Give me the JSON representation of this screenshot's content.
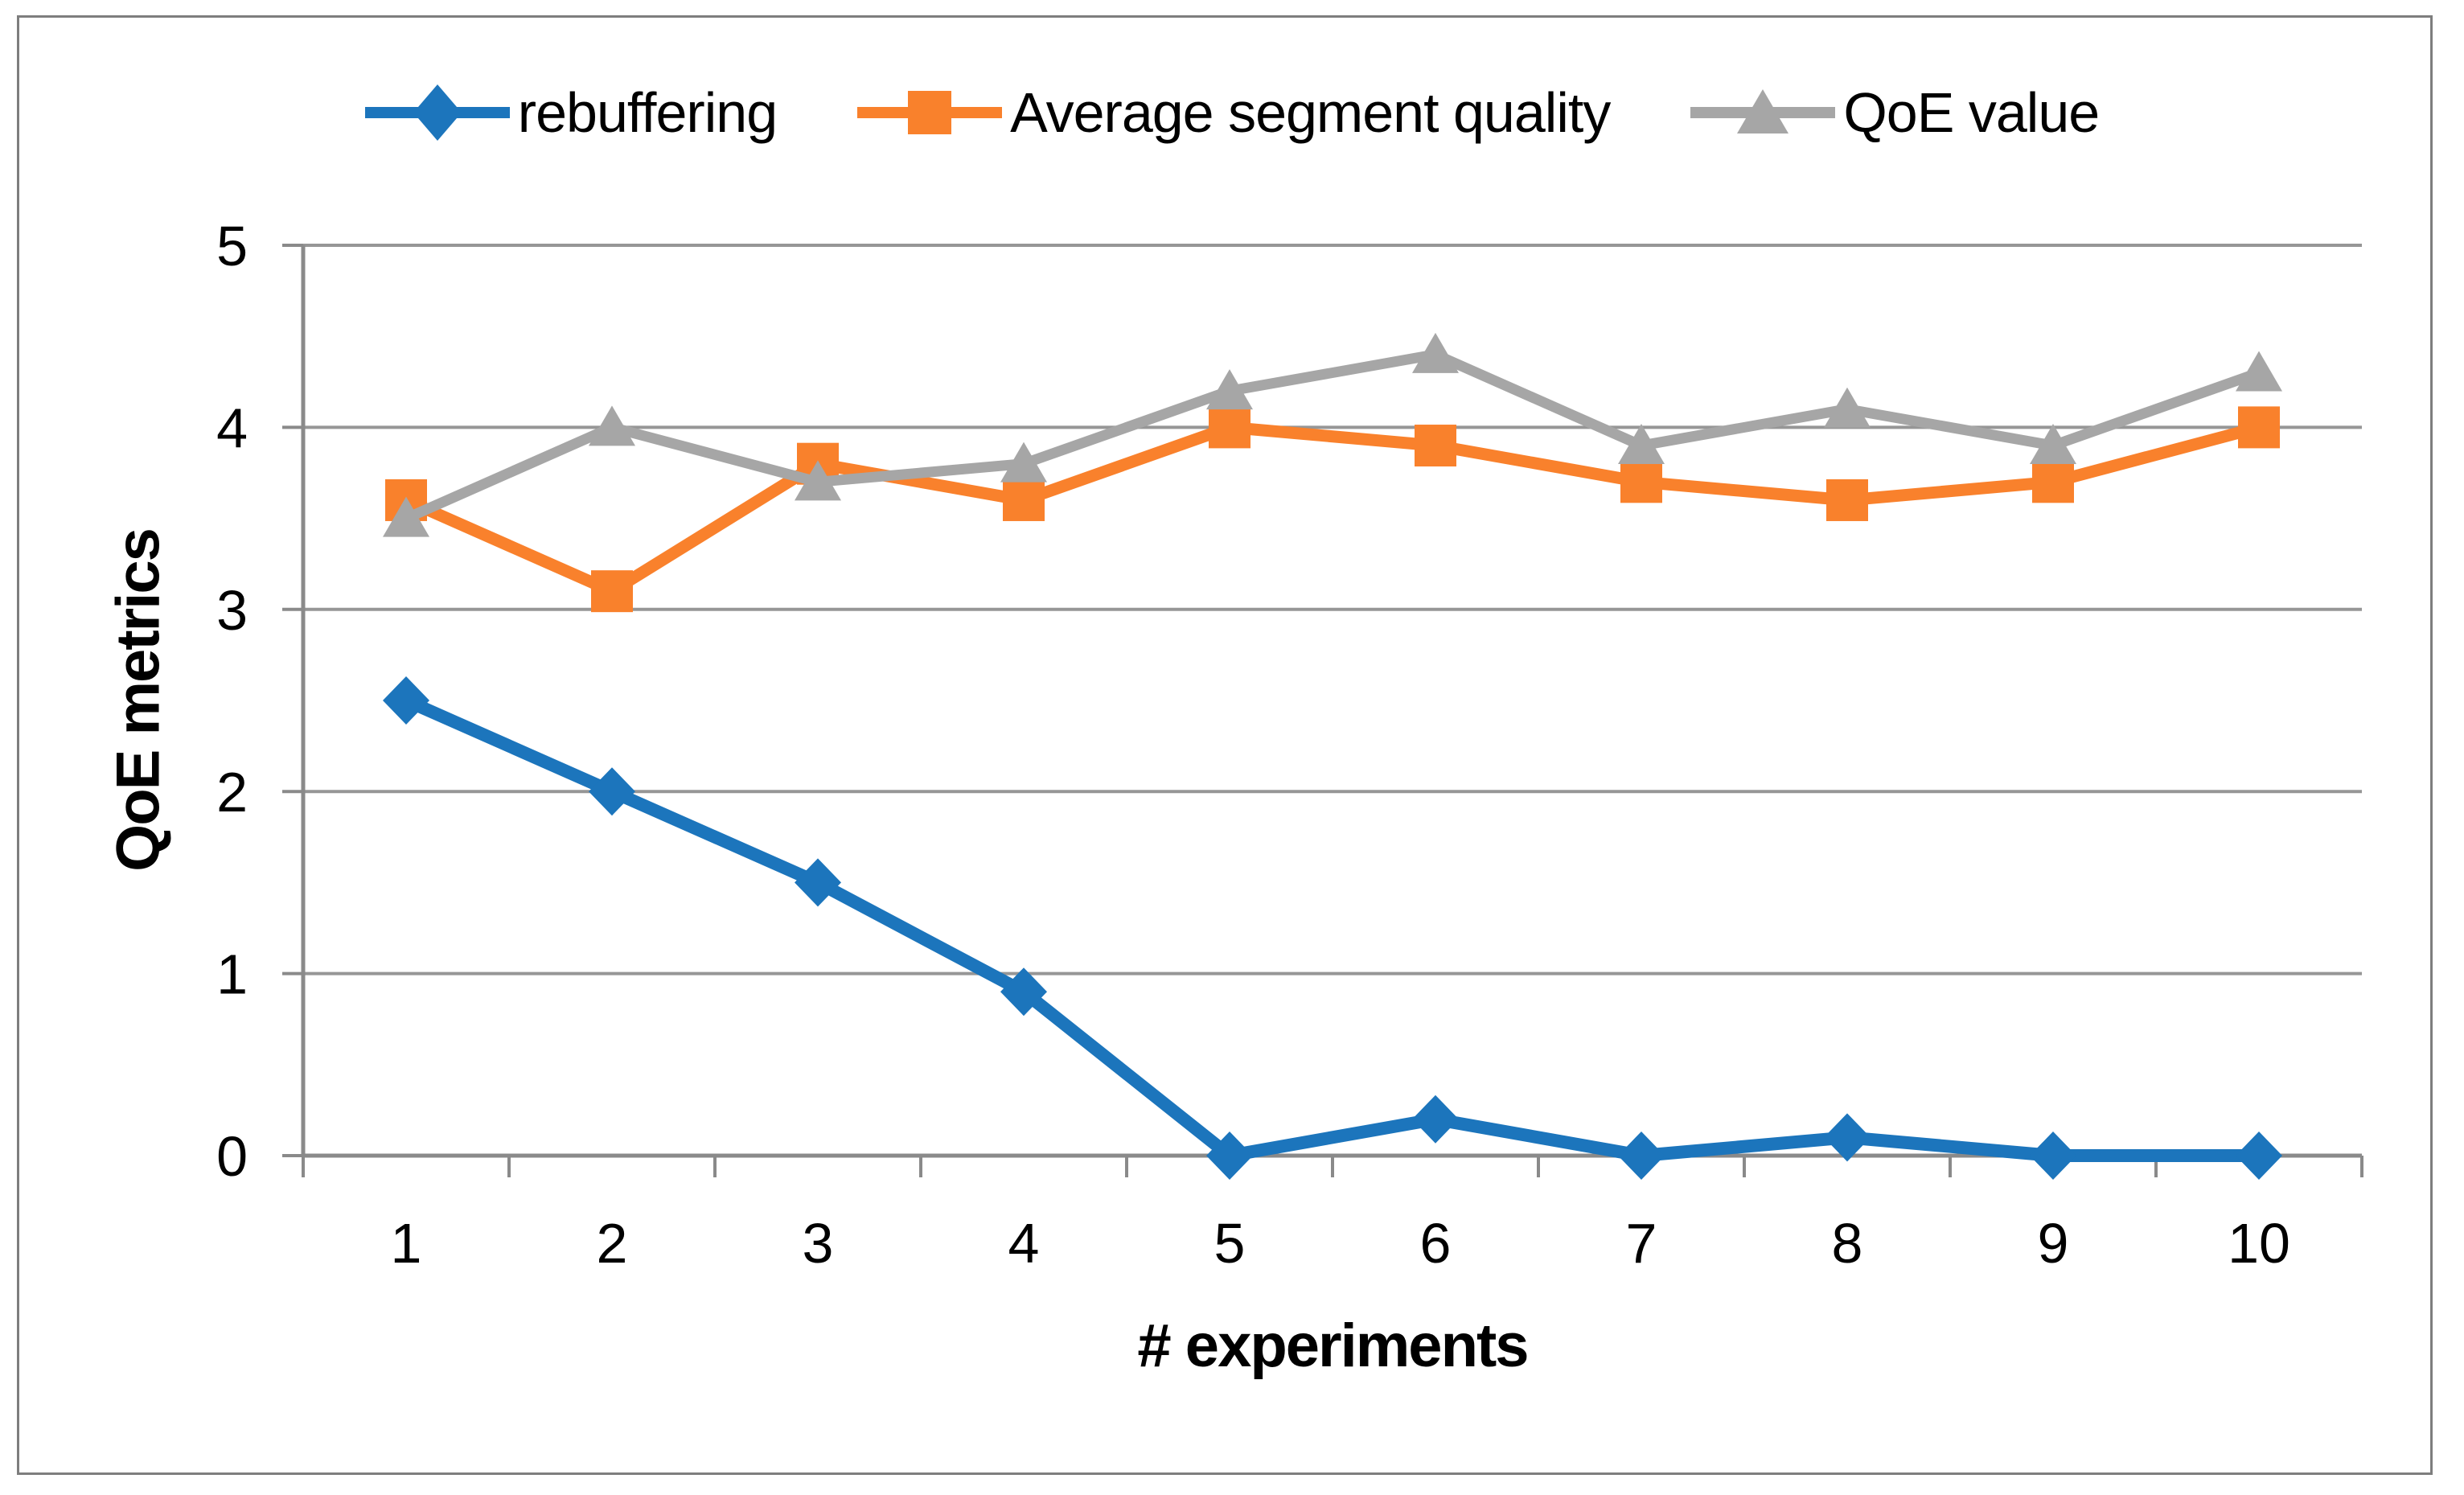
{
  "chart_data": {
    "type": "line",
    "title": "",
    "xlabel": "# experiments",
    "ylabel": "QoE metrics",
    "categories": [
      "1",
      "2",
      "3",
      "4",
      "5",
      "6",
      "7",
      "8",
      "9",
      "10"
    ],
    "x": [
      1,
      2,
      3,
      4,
      5,
      6,
      7,
      8,
      9,
      10
    ],
    "ylim": [
      0,
      5
    ],
    "yticks": [
      0,
      1,
      2,
      3,
      4,
      5
    ],
    "grid": true,
    "legend_position": "top-center",
    "gridline_color": "#969696",
    "axis_color": "#8A8A8A",
    "series": [
      {
        "name": "rebuffering",
        "marker": "diamond",
        "color": "#1C75BC",
        "values": [
          2.5,
          2.0,
          1.5,
          0.9,
          0.0,
          0.2,
          0.0,
          0.1,
          0.0,
          0.0
        ]
      },
      {
        "name": "Average segment quality",
        "marker": "square",
        "color": "#F9812C",
        "values": [
          3.6,
          3.1,
          3.8,
          3.6,
          4.0,
          3.9,
          3.7,
          3.6,
          3.7,
          4.0
        ]
      },
      {
        "name": "QoE value",
        "marker": "triangle",
        "color": "#A6A6A6",
        "values": [
          3.5,
          4.0,
          3.7,
          3.8,
          4.2,
          4.4,
          3.9,
          4.1,
          3.9,
          4.3
        ]
      }
    ]
  }
}
